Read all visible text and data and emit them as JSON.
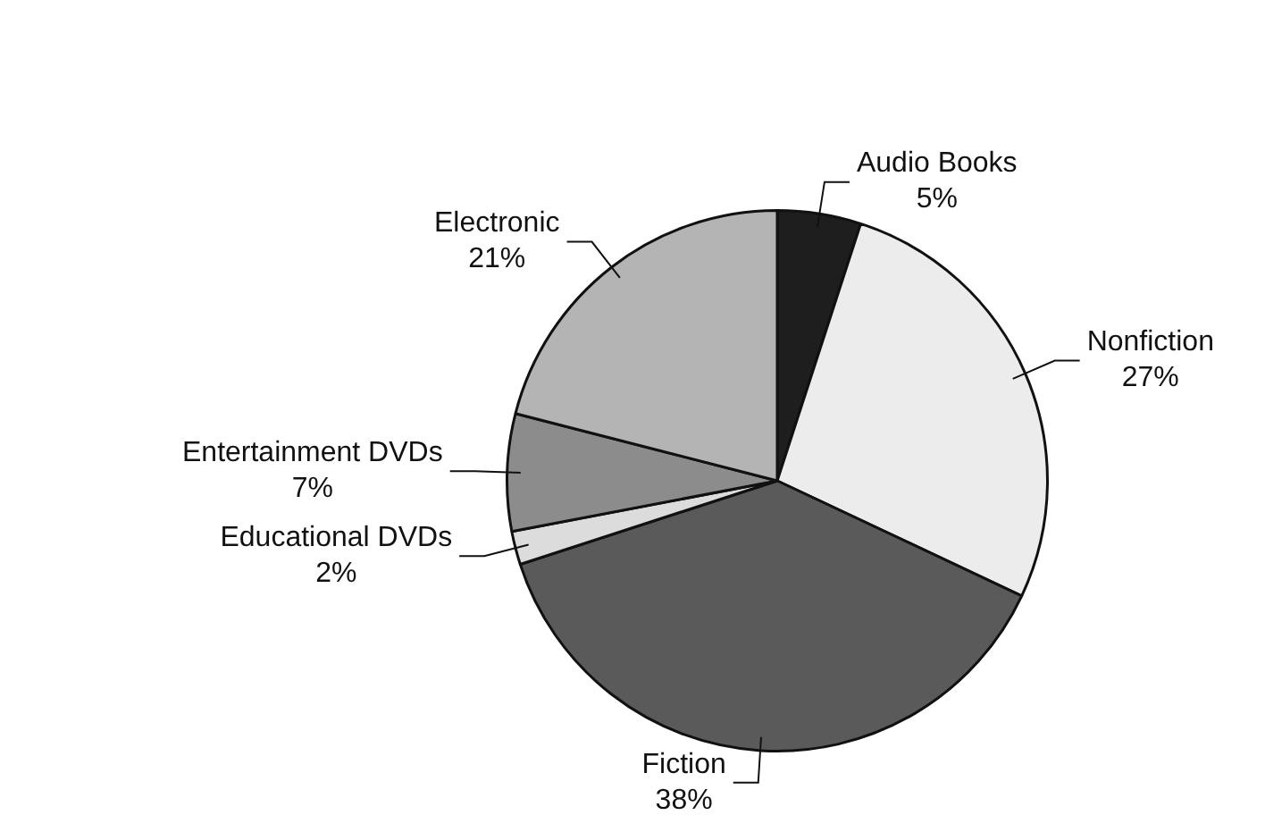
{
  "chart_data": {
    "type": "pie",
    "categories": [
      "Audio Books",
      "Nonfiction",
      "Fiction",
      "Educational DVDs",
      "Entertainment DVDs",
      "Electronic"
    ],
    "values": [
      5,
      27,
      38,
      2,
      7,
      21
    ],
    "value_labels": [
      "5%",
      "27%",
      "38%",
      "2%",
      "7%",
      "21%"
    ],
    "colors": [
      "#1e1e1e",
      "#ececec",
      "#5a5a5a",
      "#dcdcdc",
      "#8c8c8c",
      "#b4b4b4"
    ],
    "legend": false
  }
}
